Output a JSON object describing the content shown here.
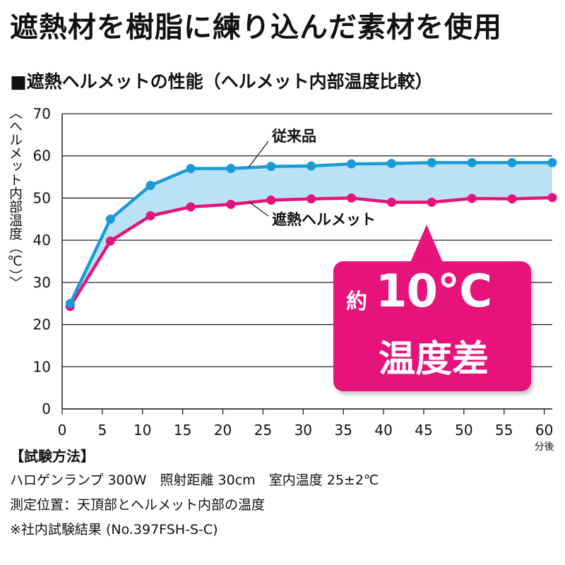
{
  "headline": "遮熱材を樹脂に練り込んだ素材を使用",
  "chart_data": {
    "type": "line",
    "title": "■遮熱ヘルメットの性能（ヘルメット内部温度比較）",
    "ylabel": "〈ヘルメット内部温度（℃）〉",
    "xunit": "分後",
    "x": [
      1,
      6,
      11,
      16,
      21,
      26,
      31,
      36,
      41,
      46,
      51,
      56,
      61
    ],
    "xticks": [
      0,
      5,
      10,
      15,
      20,
      25,
      30,
      35,
      40,
      45,
      50,
      55,
      60
    ],
    "yticks": [
      0,
      10,
      20,
      30,
      40,
      50,
      60,
      70
    ],
    "xlim": [
      0,
      61
    ],
    "ylim": [
      0,
      70
    ],
    "grid": "horizontal",
    "series": [
      {
        "name": "従来品",
        "color": "#1a9ad6",
        "values": [
          25,
          45,
          53,
          57,
          57,
          57.5,
          57.6,
          58.1,
          58.2,
          58.4,
          58.4,
          58.4,
          58.4
        ]
      },
      {
        "name": "遮熱ヘルメット",
        "color": "#e5137a",
        "values": [
          24.3,
          39.8,
          45.8,
          47.9,
          48.5,
          49.5,
          49.8,
          50,
          49,
          49,
          49.9,
          49.8,
          50.1
        ]
      }
    ],
    "fill_between_color": "#b9e2f6"
  },
  "callout": {
    "prefix": "約",
    "value": "10°C",
    "caption": "温度差",
    "color": "#e5137a"
  },
  "method": {
    "title": "【試験方法】",
    "lines": [
      "ハロゲンランプ 300W　照射距離 30cm　室内温度 25±2℃",
      "測定位置：天頂部とヘルメット内部の温度",
      "※社内試験結果 (No.397FSH-S-C)"
    ]
  }
}
